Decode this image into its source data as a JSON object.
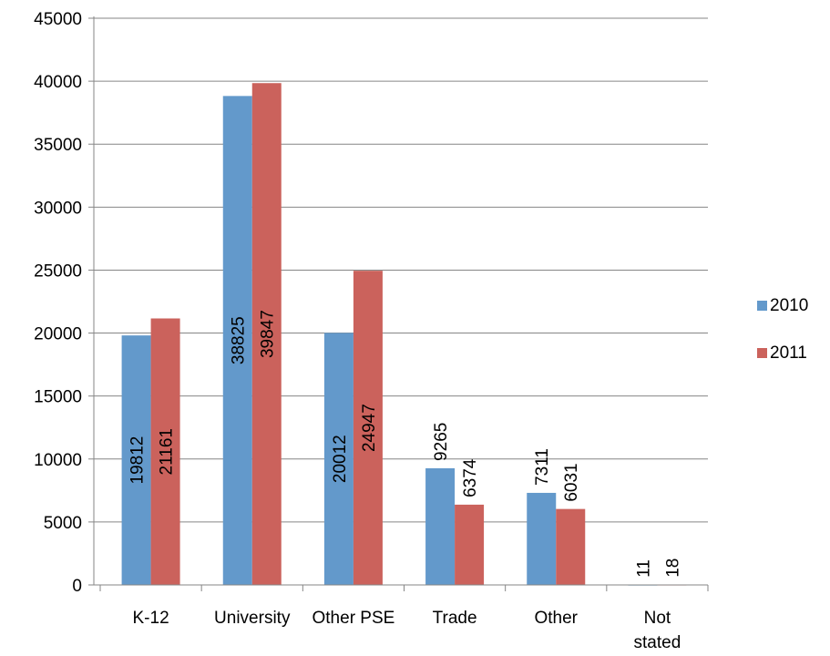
{
  "chart_data": {
    "type": "bar",
    "categories": [
      [
        "K-12"
      ],
      [
        "University"
      ],
      [
        "Other PSE"
      ],
      [
        "Trade"
      ],
      [
        "Other"
      ],
      [
        "Not",
        "stated"
      ]
    ],
    "series": [
      {
        "name": "2010",
        "color": "#6399CB",
        "values": [
          19812,
          38825,
          20012,
          9265,
          7311,
          11
        ],
        "labels": [
          "19812",
          "38825",
          "20012",
          "9265",
          "7311",
          "11"
        ]
      },
      {
        "name": "2011",
        "color": "#CB625C",
        "values": [
          21161,
          39847,
          24947,
          6374,
          6031,
          18
        ],
        "labels": [
          "21161",
          "39847",
          "24947",
          "6374",
          "6031",
          "18"
        ]
      }
    ],
    "ylim": [
      0,
      45000
    ],
    "yticks": [
      "0",
      "5000",
      "10000",
      "15000",
      "20000",
      "25000",
      "30000",
      "35000",
      "40000",
      "45000"
    ],
    "grid": true,
    "legend_position": "right"
  }
}
